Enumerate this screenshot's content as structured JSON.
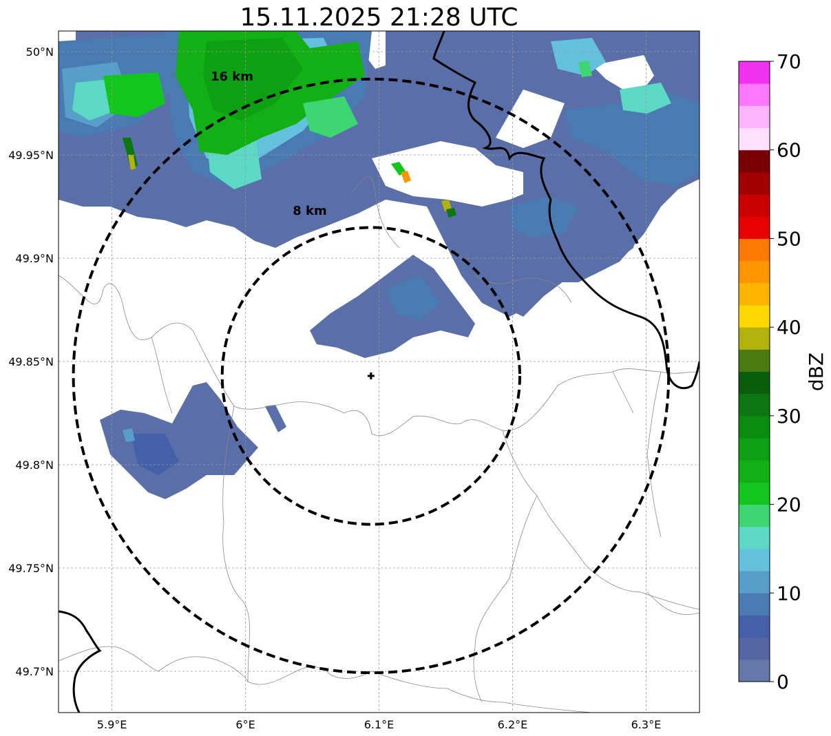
{
  "title": "15.11.2025 21:28 UTC",
  "map": {
    "lon_range": [
      5.86,
      6.34
    ],
    "lat_range": [
      49.68,
      50.01
    ],
    "lon_ticks": [
      {
        "value": 5.9,
        "label": "5.9°E"
      },
      {
        "value": 6.0,
        "label": "6°E"
      },
      {
        "value": 6.1,
        "label": "6.1°E"
      },
      {
        "value": 6.2,
        "label": "6.2°E"
      },
      {
        "value": 6.3,
        "label": "6.3°E"
      }
    ],
    "lat_ticks": [
      {
        "value": 50.0,
        "label": "50°N"
      },
      {
        "value": 49.95,
        "label": "49.95°N"
      },
      {
        "value": 49.9,
        "label": "49.9°N"
      },
      {
        "value": 49.85,
        "label": "49.85°N"
      },
      {
        "value": 49.8,
        "label": "49.8°N"
      },
      {
        "value": 49.75,
        "label": "49.75°N"
      },
      {
        "value": 49.7,
        "label": "49.7°N"
      }
    ],
    "radar_site": {
      "lon": 6.094,
      "lat": 49.843
    },
    "range_rings": [
      {
        "radius_km": 8,
        "label": "8 km"
      },
      {
        "radius_km": 16,
        "label": "16 km"
      }
    ]
  },
  "colorbar": {
    "label": "dBZ",
    "min": 0,
    "max": 70,
    "ticks": [
      0,
      10,
      20,
      30,
      40,
      50,
      60,
      70
    ],
    "colors": [
      "#6677aa",
      "#5566a0",
      "#4460a8",
      "#4a7ab2",
      "#579fc8",
      "#63c1dd",
      "#5cd8c4",
      "#3ed670",
      "#12c61e",
      "#12b014",
      "#0ca012",
      "#0a8c10",
      "#0b7710",
      "#085e0b",
      "#4a7a10",
      "#b2b20c",
      "#ffd800",
      "#ffb400",
      "#ff9600",
      "#ff7800",
      "#e60000",
      "#c80000",
      "#a00000",
      "#780000",
      "#ffe0ff",
      "#ffb4ff",
      "#ff78ff",
      "#f032f0"
    ]
  }
}
